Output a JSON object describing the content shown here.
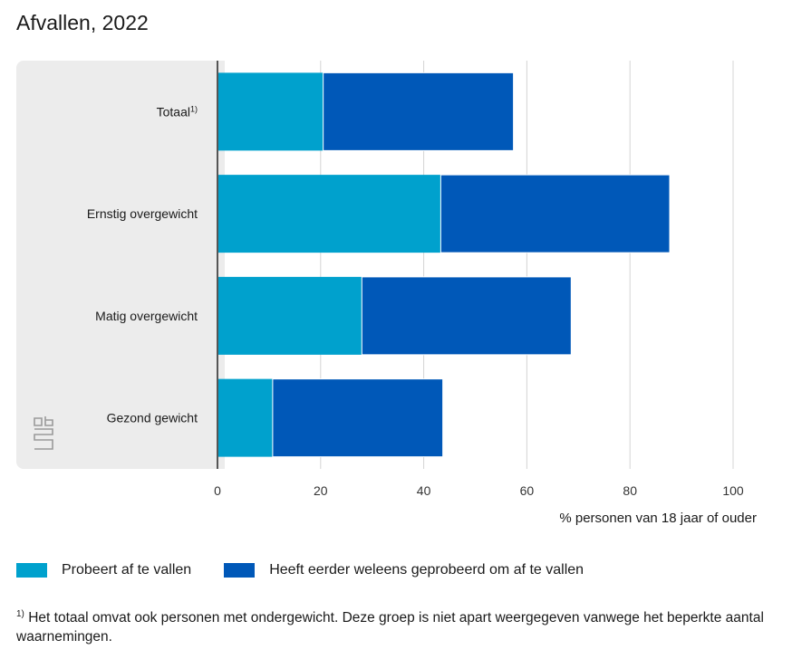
{
  "chart_data": {
    "type": "bar",
    "orientation": "horizontal",
    "stacked": true,
    "title": "Afvallen, 2022",
    "categories": [
      {
        "label": "Totaal",
        "sup": "1)"
      },
      {
        "label": "Ernstig overgewicht",
        "sup": ""
      },
      {
        "label": "Matig overgewicht",
        "sup": ""
      },
      {
        "label": "Gezond gewicht",
        "sup": ""
      }
    ],
    "series": [
      {
        "name": "Probeert af te vallen",
        "color": "#00a1cd",
        "values": [
          20.5,
          43.3,
          28.0,
          10.7
        ]
      },
      {
        "name": "Heeft eerder weleens geprobeerd om af te vallen",
        "color": "#0058b8",
        "values": [
          36.9,
          44.4,
          40.6,
          33.0
        ]
      }
    ],
    "xlabel": "% personen van 18 jaar of ouder",
    "xlim": [
      0,
      100
    ],
    "xticks": [
      0,
      20,
      40,
      60,
      80,
      100
    ],
    "grid": true,
    "legend_position": "bottom"
  },
  "footnote": {
    "marker": "1)",
    "text": " Het totaal omvat ook personen met ondergewicht. Deze groep is niet apart weergegeven vanwege het beperkte aantal waarnemingen."
  },
  "logo_icon": "cbs-logo-icon"
}
